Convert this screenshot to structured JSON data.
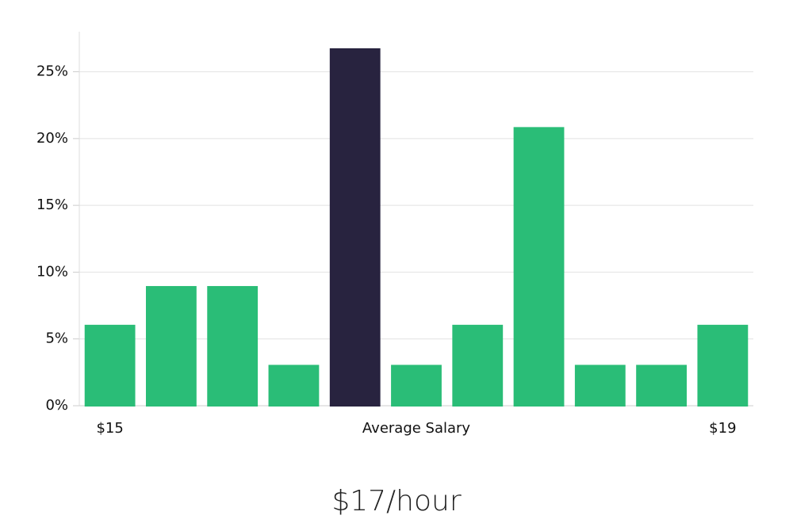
{
  "chart_data": {
    "type": "bar",
    "categories": [
      "$15",
      null,
      null,
      null,
      null,
      "Average Salary",
      null,
      null,
      null,
      null,
      "$19"
    ],
    "values": [
      6,
      8.9,
      8.9,
      3,
      26.7,
      3,
      6,
      20.8,
      3,
      3,
      6
    ],
    "colors": [
      "#2abd77",
      "#2abd77",
      "#2abd77",
      "#2abd77",
      "#28233f",
      "#2abd77",
      "#2abd77",
      "#2abd77",
      "#2abd77",
      "#2abd77",
      "#2abd77"
    ],
    "ylim": [
      0,
      28
    ],
    "yticks": [
      {
        "value": 0,
        "label": "0%"
      },
      {
        "value": 5,
        "label": "5%"
      },
      {
        "value": 10,
        "label": "10%"
      },
      {
        "value": 15,
        "label": "15%"
      },
      {
        "value": 20,
        "label": "20%"
      },
      {
        "value": 25,
        "label": "25%"
      }
    ],
    "grid": true,
    "caption": "$17/hour"
  }
}
